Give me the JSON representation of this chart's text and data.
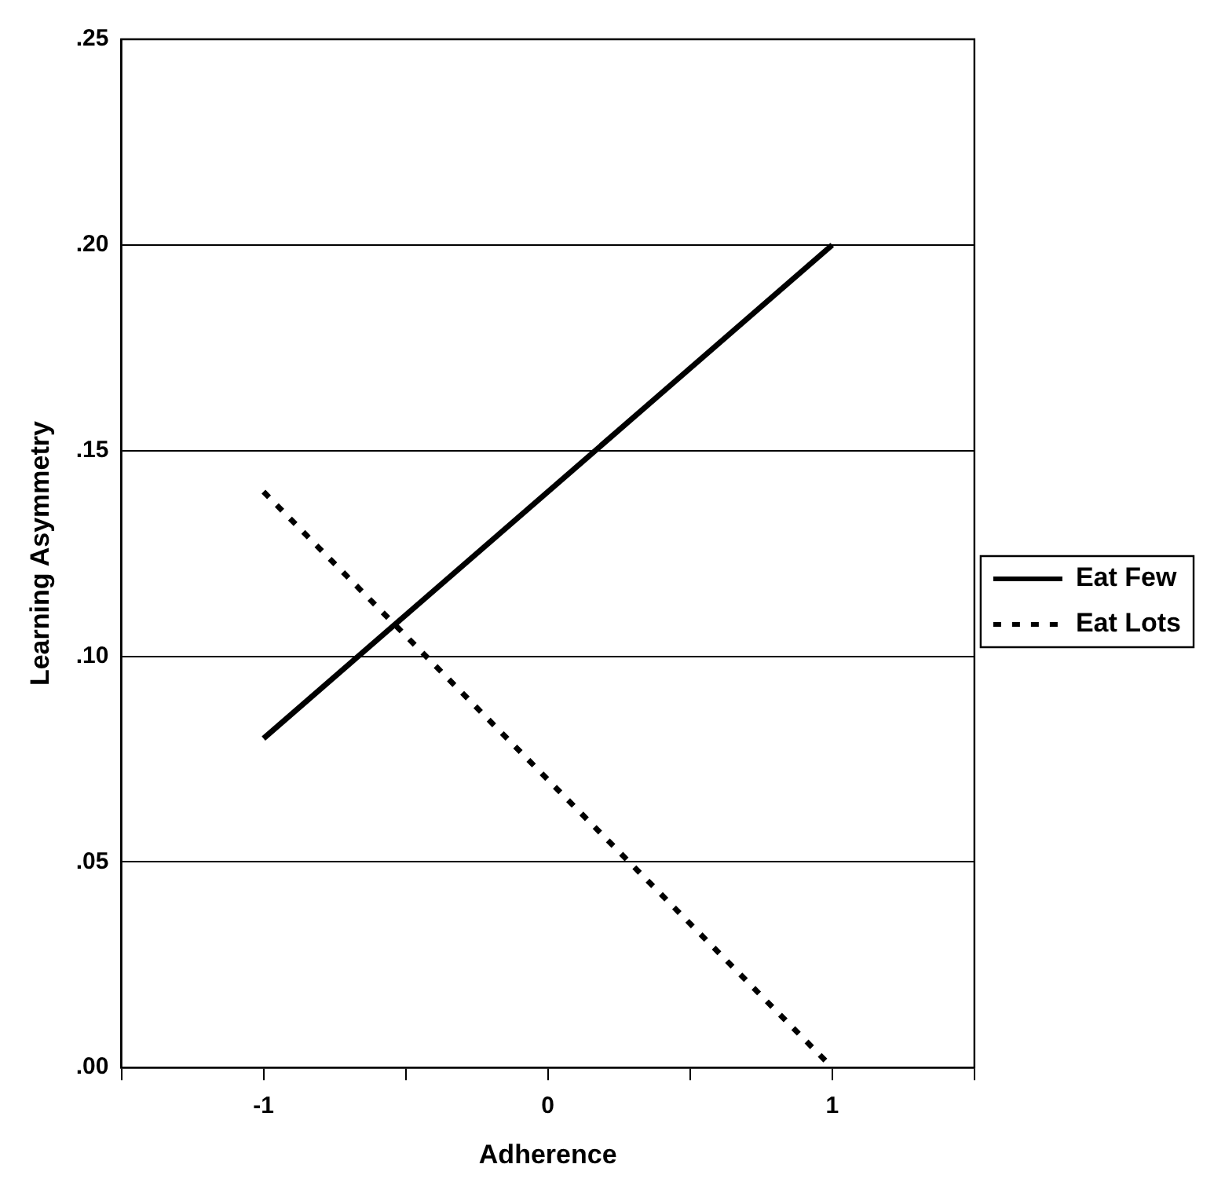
{
  "chart_data": {
    "type": "line",
    "xlabel": "Adherence",
    "ylabel": "Learning Asymmetry",
    "x": [
      -1,
      1
    ],
    "series": [
      {
        "name": "Eat Few",
        "color": "#000000",
        "values": [
          0.08,
          0.2
        ],
        "line_style": "solid"
      },
      {
        "name": "Eat Lots",
        "color": "#000000",
        "values": [
          0.14,
          0.0
        ],
        "line_style": "dotted"
      }
    ],
    "xlim": [
      -1.5,
      1.5
    ],
    "xticks": [
      {
        "value": -1.5,
        "label": null
      },
      -1,
      {
        "value": -0.5,
        "label": null
      },
      0,
      {
        "value": 0.5,
        "label": null
      },
      1,
      {
        "value": 1.5,
        "label": null
      }
    ],
    "ylim": [
      0,
      0.25
    ],
    "yticks": [
      {
        "value": 0,
        "label": ".00"
      },
      {
        "value": 0.05,
        "label": ".05"
      },
      {
        "value": 0.1,
        "label": ".10"
      },
      {
        "value": 0.15,
        "label": ".15"
      },
      {
        "value": 0.2,
        "label": ".20"
      },
      {
        "value": 0.25,
        "label": ".25"
      }
    ],
    "grid": "y",
    "legend": "right",
    "marker": "none"
  }
}
